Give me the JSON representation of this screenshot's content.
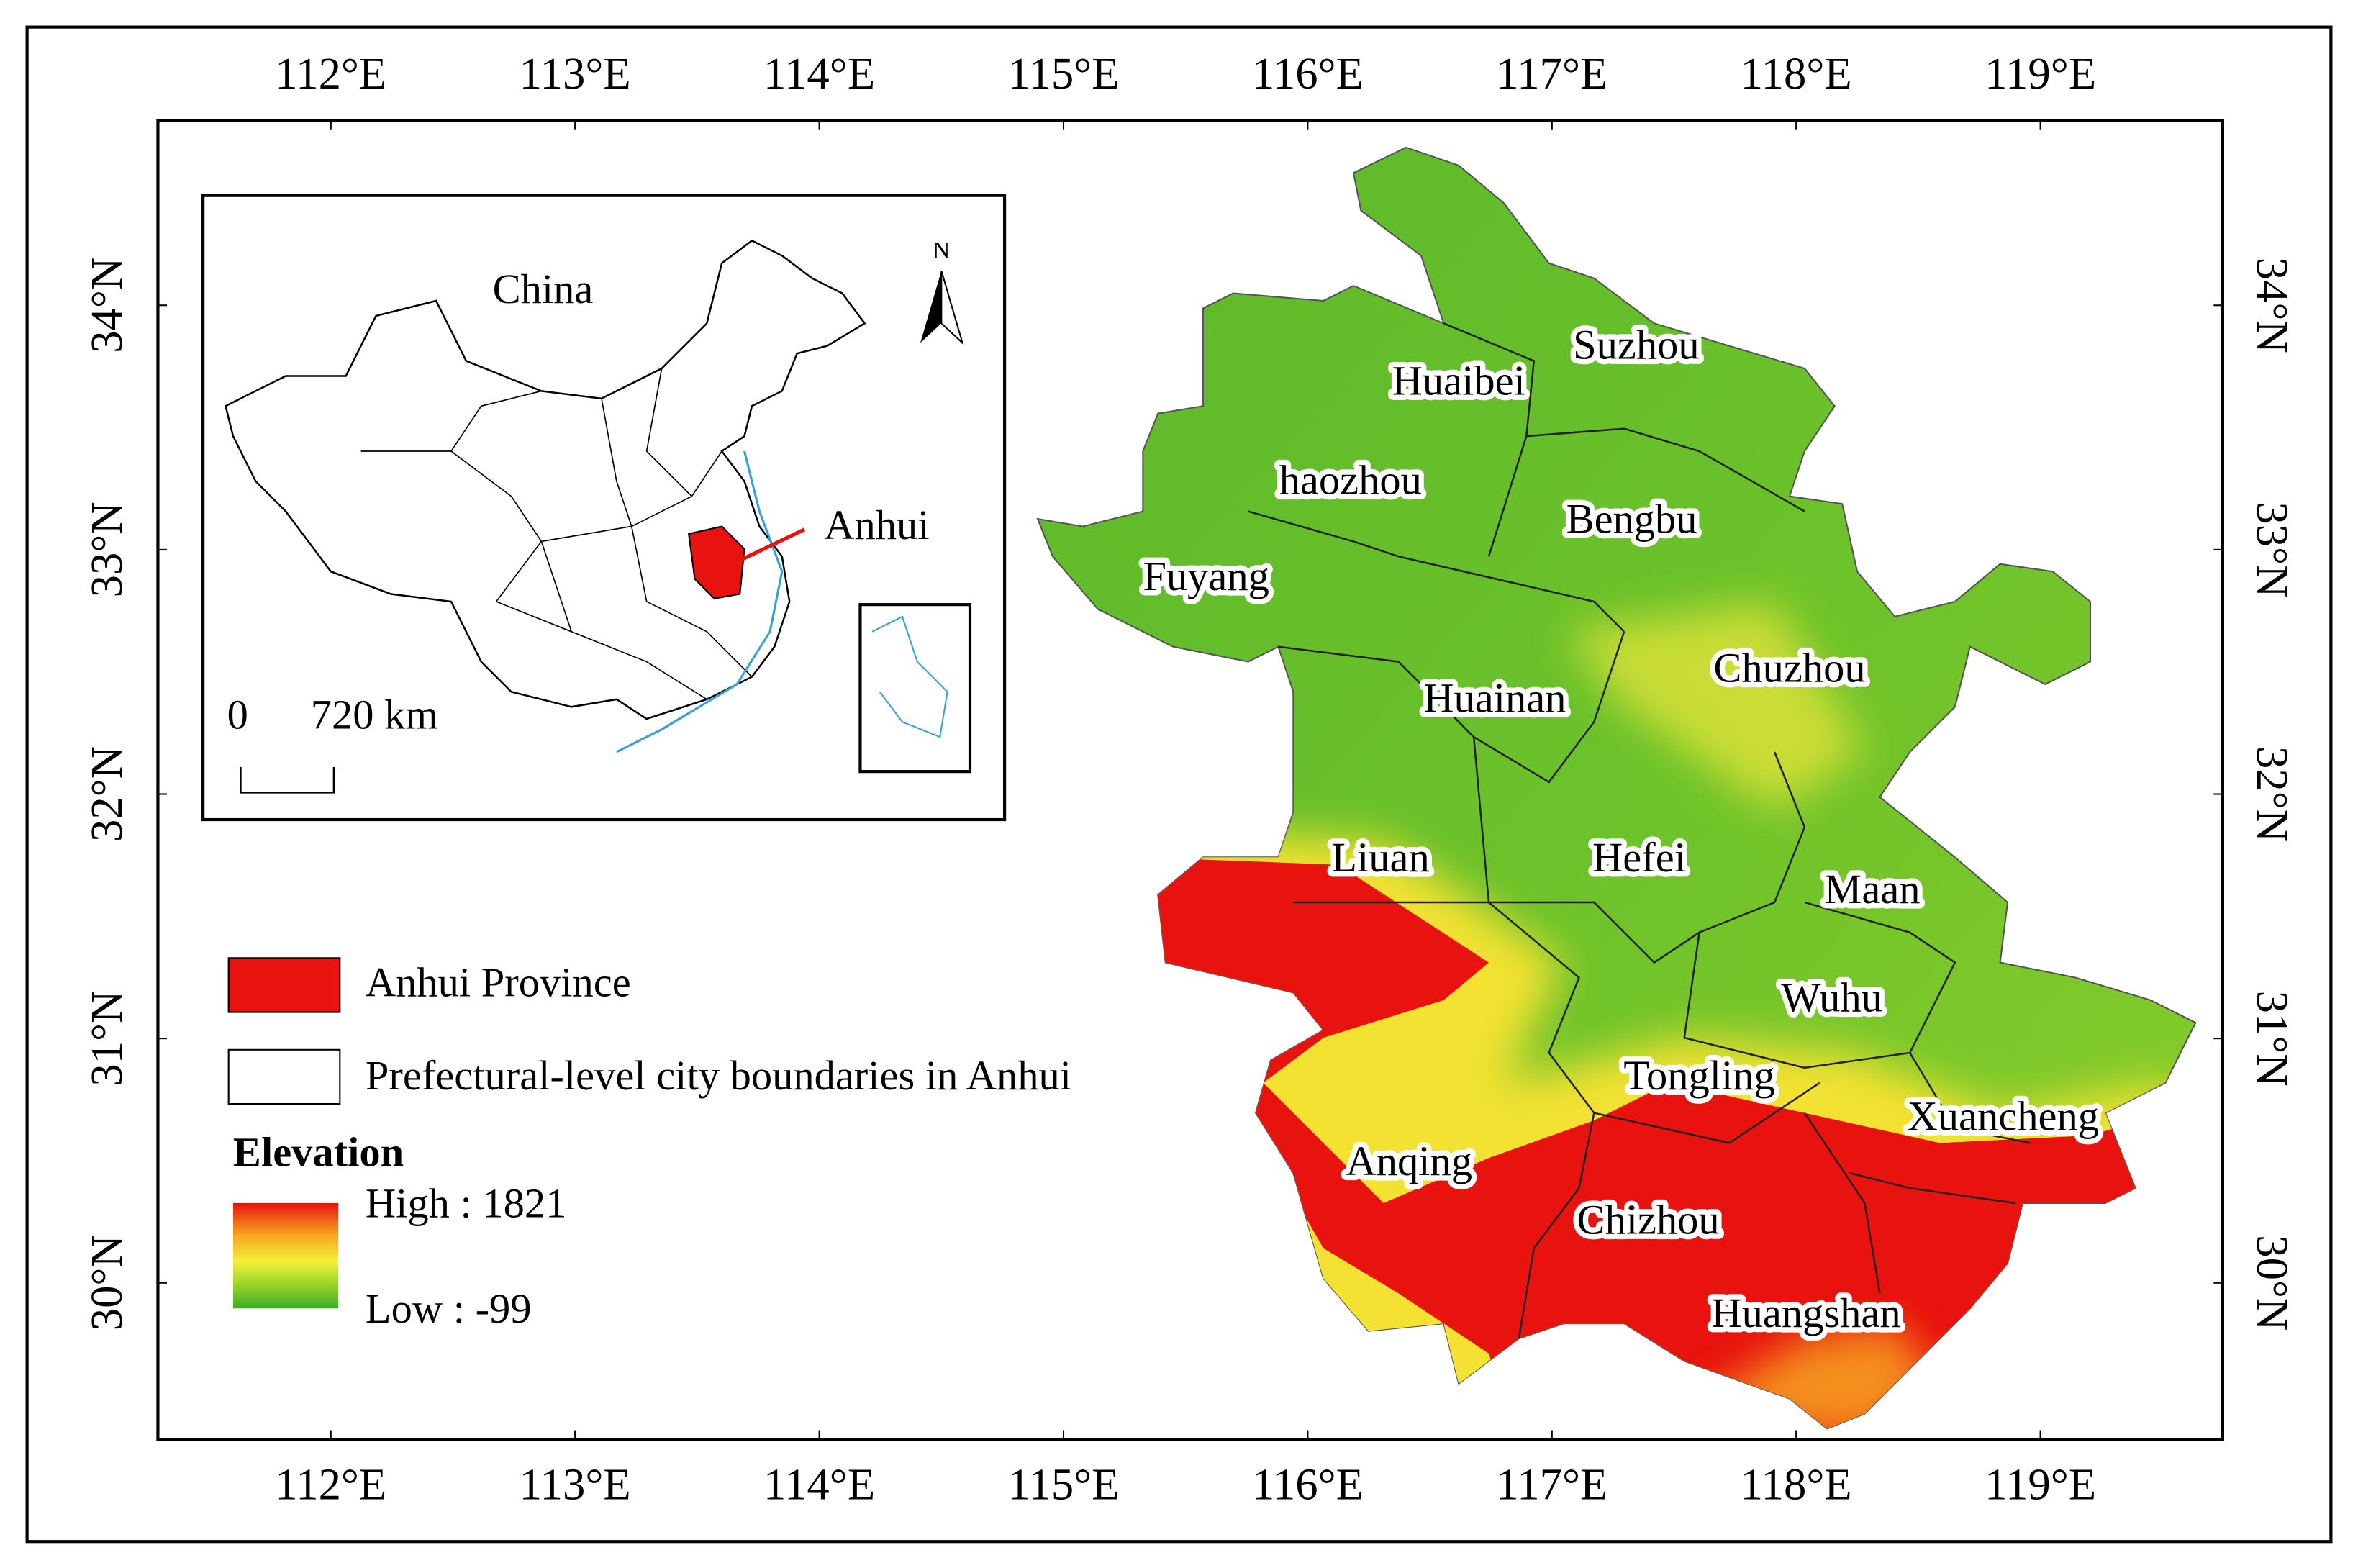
{
  "map": {
    "longitude_ticks": [
      {
        "value": 112,
        "label": "112°E"
      },
      {
        "value": 113,
        "label": "113°E"
      },
      {
        "value": 114,
        "label": "114°E"
      },
      {
        "value": 115,
        "label": "115°E"
      },
      {
        "value": 116,
        "label": "116°E"
      },
      {
        "value": 117,
        "label": "117°E"
      },
      {
        "value": 118,
        "label": "118°E"
      },
      {
        "value": 119,
        "label": "119°E"
      }
    ],
    "latitude_ticks": [
      {
        "value": 30,
        "label": "30°N"
      },
      {
        "value": 31,
        "label": "31°N"
      },
      {
        "value": 32,
        "label": "32°N"
      },
      {
        "value": 33,
        "label": "33°N"
      },
      {
        "value": 34,
        "label": "34°N"
      }
    ],
    "cities": [
      "Suzhou",
      "Huaibei",
      "haozhou",
      "Bengbu",
      "Fuyang",
      "Chuzhou",
      "Huainan",
      "Liuan",
      "Hefei",
      "Maan",
      "Wuhu",
      "Tongling",
      "Xuancheng",
      "Anqing",
      "Chizhou",
      "Huangshan"
    ],
    "inset": {
      "country": "China",
      "province": "Anhui",
      "north": "N",
      "scale_zero": "0",
      "scale_label": "720 km"
    },
    "legend": {
      "province": "Anhui Province",
      "boundaries": "Prefectural-level city boundaries in Anhui",
      "elevation_title": "Elevation",
      "high": "High : 1821",
      "low": "Low : -99"
    }
  }
}
